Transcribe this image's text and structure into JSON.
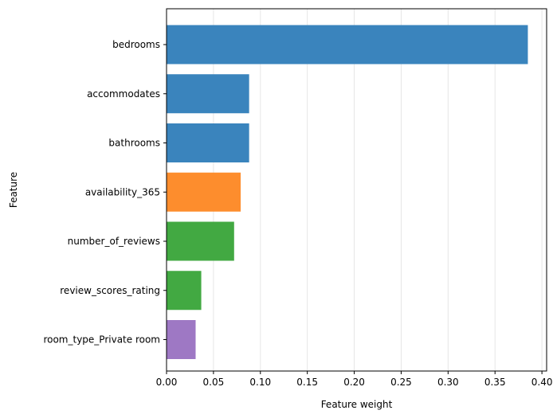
{
  "chart_data": {
    "type": "bar",
    "orientation": "horizontal",
    "xlabel": "Feature weight",
    "ylabel": "Feature",
    "xlim": [
      0,
      0.405
    ],
    "xticks": [
      "0.00",
      "0.05",
      "0.10",
      "0.15",
      "0.20",
      "0.25",
      "0.30",
      "0.35",
      "0.40"
    ],
    "grid": "vertical gridlines",
    "categories": [
      "bedrooms",
      "accommodates",
      "bathrooms",
      "availability_365",
      "number_of_reviews",
      "review_scores_rating",
      "room_type_Private room"
    ],
    "values": [
      0.385,
      0.088,
      0.088,
      0.079,
      0.072,
      0.037,
      0.031
    ],
    "colors": [
      "#3a84bd",
      "#3a84bd",
      "#3a84bd",
      "#fd8d2d",
      "#42a942",
      "#42a942",
      "#9e78c4"
    ]
  }
}
